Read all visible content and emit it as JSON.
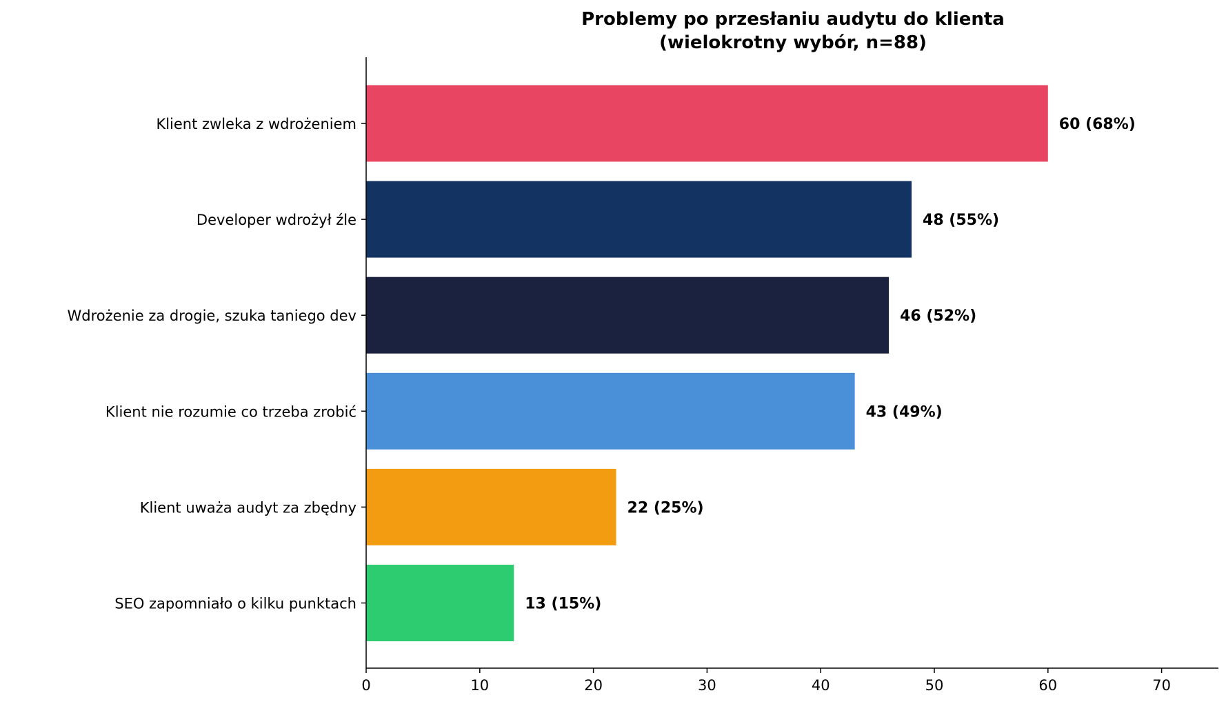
{
  "chart_data": {
    "type": "bar",
    "orientation": "horizontal",
    "title": "Problemy po przesłaniu audytu do klienta",
    "subtitle": "(wielokrotny wybór, n=88)",
    "xlabel": "",
    "ylabel": "",
    "xlim": [
      0,
      75
    ],
    "x_ticks": [
      0,
      10,
      20,
      30,
      40,
      50,
      60,
      70
    ],
    "grid": false,
    "categories": [
      "Klient zwleka z wdrożeniem",
      "Developer wdrożył źle",
      "Wdrożenie za drogie, szuka taniego dev",
      "Klient nie rozumie co trzeba zrobić",
      "Klient uważa audyt za zbędny",
      "SEO zapomniało o kilku punktach"
    ],
    "values": [
      60,
      48,
      46,
      43,
      22,
      13
    ],
    "data_labels": [
      "60 (68%)",
      "48 (55%)",
      "46 (52%)",
      "43 (49%)",
      "22 (25%)",
      "13 (15%)"
    ],
    "colors": [
      "#e84562",
      "#133462",
      "#1a223f",
      "#4a90d9",
      "#f39c12",
      "#2ecc71"
    ]
  }
}
